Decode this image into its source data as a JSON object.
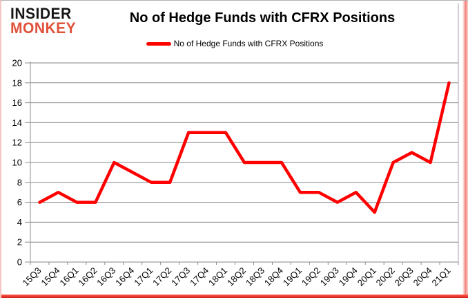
{
  "logo": {
    "line1": "INSIDER",
    "line2": "MONKEY",
    "monkey_color": "#e0513a"
  },
  "header": {
    "title": "No of Hedge Funds with CFRX Positions"
  },
  "legend": {
    "label": "No of Hedge Funds with CFRX Positions",
    "swatch_color": "#ff0000"
  },
  "chart_data": {
    "type": "line",
    "title": "No of Hedge Funds with CFRX Positions",
    "categories": [
      "15Q3",
      "15Q4",
      "16Q1",
      "16Q2",
      "16Q3",
      "16Q4",
      "17Q1",
      "17Q2",
      "17Q3",
      "17Q4",
      "18Q1",
      "18Q2",
      "18Q3",
      "18Q4",
      "19Q1",
      "19Q2",
      "19Q3",
      "19Q4",
      "20Q1",
      "20Q2",
      "20Q3",
      "20Q4",
      "21Q1"
    ],
    "series": [
      {
        "name": "No of Hedge Funds with CFRX Positions",
        "color": "#ff0000",
        "values": [
          6,
          7,
          6,
          6,
          10,
          9,
          8,
          8,
          13,
          13,
          13,
          10,
          10,
          10,
          7,
          7,
          6,
          7,
          5,
          10,
          11,
          10,
          18
        ]
      }
    ],
    "xlabel": "",
    "ylabel": "",
    "ylim": [
      0,
      20
    ],
    "ytick_step": 2,
    "grid": true,
    "gridline_color": "#878787",
    "axis_color": "#8c8c8c",
    "legend_position": "top-center",
    "x_tick_labels_rotation_deg": -45
  }
}
